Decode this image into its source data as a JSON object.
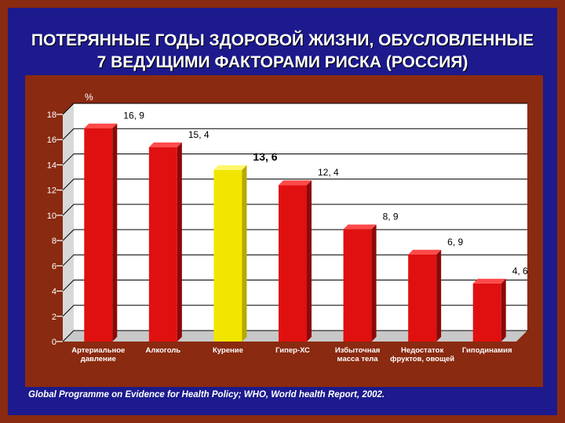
{
  "title": {
    "line1": "ПОТЕРЯННЫЕ ГОДЫ ЗДОРОВОЙ ЖИЗНИ, ОБУСЛОВЛЕННЫЕ",
    "line2": "7 ВЕДУЩИМИ ФАКТОРАМИ РИСКА (РОССИЯ)"
  },
  "source": "Global Programme on Evidence for Health Policy; WHO, World health Report, 2002.",
  "colors": {
    "background": "#8a2a10",
    "slide": "#1c1a8c",
    "bar": "#e01010",
    "bar_highlight": "#f2e600",
    "text": "#ffffff"
  },
  "chart_data": {
    "type": "bar",
    "ylabel": "%",
    "ylim": [
      0,
      18
    ],
    "yticks": [
      0,
      2,
      4,
      6,
      8,
      10,
      12,
      14,
      16,
      18
    ],
    "grid": true,
    "highlight_index": 2,
    "categories": [
      [
        "Артериальное",
        "давление"
      ],
      [
        "Алкоголь"
      ],
      [
        "Курение"
      ],
      [
        "Гипер-ХС"
      ],
      [
        "Избыточная",
        "масса тела"
      ],
      [
        "Недостаток",
        "фруктов, овощей"
      ],
      [
        "Гиподинамия"
      ]
    ],
    "values": [
      16.9,
      15.4,
      13.6,
      12.4,
      8.9,
      6.9,
      4.6
    ],
    "value_labels": [
      "16, 9",
      "15, 4",
      "13, 6",
      "12, 4",
      "8, 9",
      "6, 9",
      "4, 6"
    ]
  }
}
